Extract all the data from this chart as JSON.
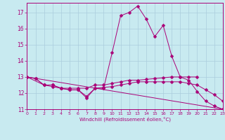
{
  "xlabel": "Windchill (Refroidissement éolien,°C)",
  "background_color": "#c8eaf0",
  "line_color": "#aa0077",
  "grid_color": "#aaccdd",
  "line1": [
    13.0,
    12.9,
    12.5,
    12.5,
    12.3,
    12.2,
    12.2,
    11.7,
    12.3,
    12.3,
    14.5,
    16.8,
    17.0,
    17.4,
    16.6,
    15.5,
    16.2,
    14.3,
    13.0,
    12.8,
    12.1,
    11.5,
    11.2,
    11.0
  ],
  "line2_x": [
    0,
    2,
    3,
    4,
    5,
    6,
    7,
    8,
    9,
    10,
    11,
    12,
    13,
    14,
    15,
    16,
    17,
    18,
    19,
    20
  ],
  "line2_y": [
    13.0,
    12.5,
    12.5,
    12.3,
    12.3,
    12.3,
    12.3,
    12.5,
    12.5,
    12.6,
    12.7,
    12.8,
    12.8,
    12.85,
    12.9,
    12.95,
    13.0,
    13.0,
    13.0,
    13.0
  ],
  "line3_x": [
    0,
    23
  ],
  "line3_y": [
    13.0,
    11.0
  ],
  "line4_x": [
    0,
    1,
    2,
    3,
    4,
    5,
    6,
    7,
    8,
    9,
    10,
    11,
    12,
    13,
    14,
    15,
    16,
    17,
    18,
    19,
    20,
    21,
    22,
    23
  ],
  "line4_y": [
    13.0,
    12.9,
    12.5,
    12.4,
    12.3,
    12.2,
    12.2,
    11.8,
    12.3,
    12.35,
    12.4,
    12.5,
    12.6,
    12.7,
    12.7,
    12.7,
    12.7,
    12.7,
    12.7,
    12.6,
    12.5,
    12.2,
    11.9,
    11.5
  ],
  "ylim": [
    11.0,
    17.6
  ],
  "xlim": [
    0,
    23
  ],
  "yticks": [
    11,
    12,
    13,
    14,
    15,
    16,
    17
  ],
  "xticks": [
    0,
    1,
    2,
    3,
    4,
    5,
    6,
    7,
    8,
    9,
    10,
    11,
    12,
    13,
    14,
    15,
    16,
    17,
    18,
    19,
    20,
    21,
    22,
    23
  ]
}
